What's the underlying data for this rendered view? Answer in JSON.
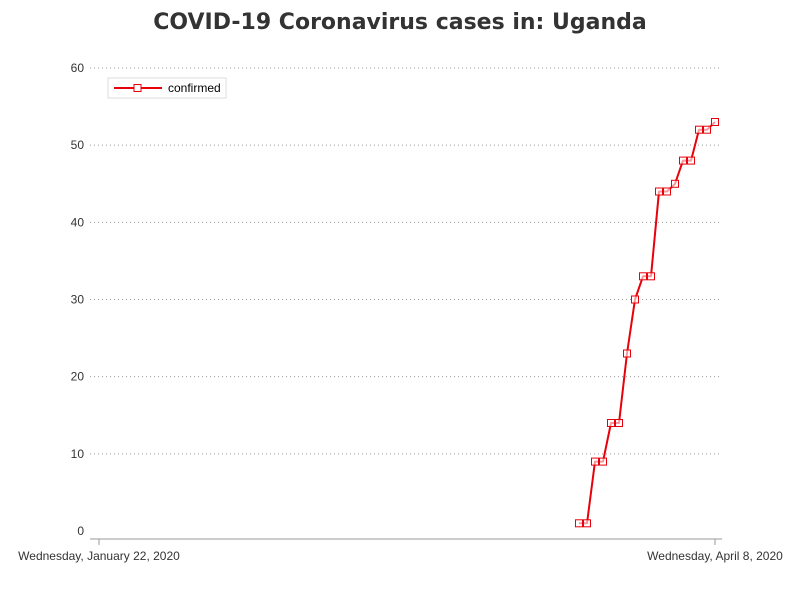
{
  "chart_data": {
    "type": "line",
    "title": "COVID-19 Coronavirus cases in: Uganda",
    "xlabel": "",
    "ylabel": "",
    "x_tick_labels": [
      "Wednesday, January 22, 2020",
      "Wednesday, April 8, 2020"
    ],
    "x_start": "2020-01-22",
    "x_end": "2020-04-08",
    "ylim": [
      0,
      60
    ],
    "y_ticks": [
      0,
      10,
      20,
      30,
      40,
      50,
      60
    ],
    "grid": "horizontal dotted",
    "legend_position": "top-left",
    "series": [
      {
        "name": "confirmed",
        "color": "#e8000b",
        "marker": "square",
        "x": [
          "2020-03-22",
          "2020-03-23",
          "2020-03-24",
          "2020-03-25",
          "2020-03-26",
          "2020-03-27",
          "2020-03-28",
          "2020-03-29",
          "2020-03-30",
          "2020-03-31",
          "2020-04-01",
          "2020-04-02",
          "2020-04-03",
          "2020-04-04",
          "2020-04-05",
          "2020-04-06",
          "2020-04-07",
          "2020-04-08"
        ],
        "values": [
          1,
          1,
          9,
          9,
          14,
          14,
          23,
          30,
          33,
          33,
          44,
          44,
          45,
          48,
          48,
          52,
          52,
          53
        ]
      }
    ]
  }
}
